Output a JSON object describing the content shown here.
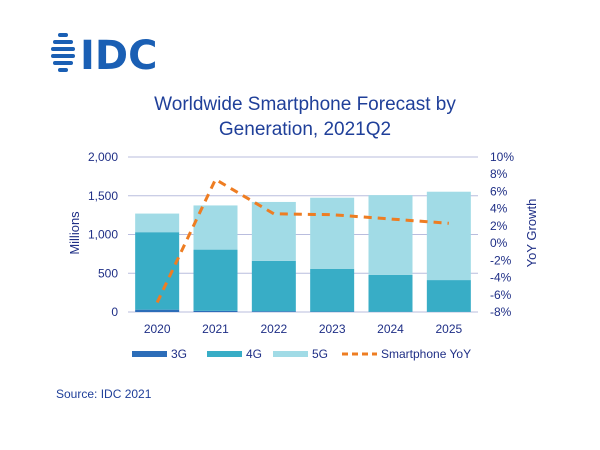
{
  "logo": {
    "text": "IDC",
    "color": "#1a5fb4"
  },
  "colors": {
    "series_3g": "#2c6db8",
    "series_4g": "#38adc6",
    "series_5g": "#a1dbe6",
    "yoy_line": "#ee7d22",
    "text": "#1f2f86",
    "grid": "#b9bdde"
  },
  "chart_data": {
    "type": "bar",
    "subtype": "stacked-bar-with-line",
    "title": "Worldwide Smartphone Forecast by Generation, 2021Q2",
    "title_lines": [
      "Worldwide Smartphone Forecast by",
      "Generation, 2021Q2"
    ],
    "categories": [
      "2020",
      "2021",
      "2022",
      "2023",
      "2024",
      "2025"
    ],
    "ylabel": "Millions",
    "y2label": "YoY Growth",
    "ylim": [
      0,
      2000
    ],
    "yticks": [
      0,
      500,
      1000,
      1500,
      2000
    ],
    "ytick_labels": [
      "0",
      "500",
      "1,000",
      "1,500",
      "2,000"
    ],
    "y2lim": [
      -8,
      10
    ],
    "y2ticks": [
      10,
      8,
      6,
      4,
      2,
      0,
      -2,
      -4,
      -6,
      -8
    ],
    "y2tick_labels": [
      "10%",
      "8%",
      "6%",
      "4%",
      "2%",
      "0%",
      "-2%",
      "-4%",
      "-6%",
      "-8%"
    ],
    "grid": true,
    "series": [
      {
        "name": "3G",
        "axis": "left",
        "kind": "bar",
        "values": [
          30,
          15,
          10,
          5,
          3,
          2
        ]
      },
      {
        "name": "4G",
        "axis": "left",
        "kind": "bar",
        "values": [
          1000,
          790,
          650,
          550,
          475,
          410
        ]
      },
      {
        "name": "5G",
        "axis": "left",
        "kind": "bar",
        "values": [
          240,
          570,
          760,
          920,
          1030,
          1140
        ]
      },
      {
        "name": "Smartphone YoY",
        "axis": "right",
        "kind": "line",
        "style": "dashed",
        "values": [
          -6.9,
          7.4,
          3.4,
          3.3,
          2.8,
          2.3
        ]
      }
    ],
    "legend": [
      "3G",
      "4G",
      "5G",
      "Smartphone YoY"
    ],
    "legend_position": "bottom"
  },
  "source": "Source: IDC 2021"
}
